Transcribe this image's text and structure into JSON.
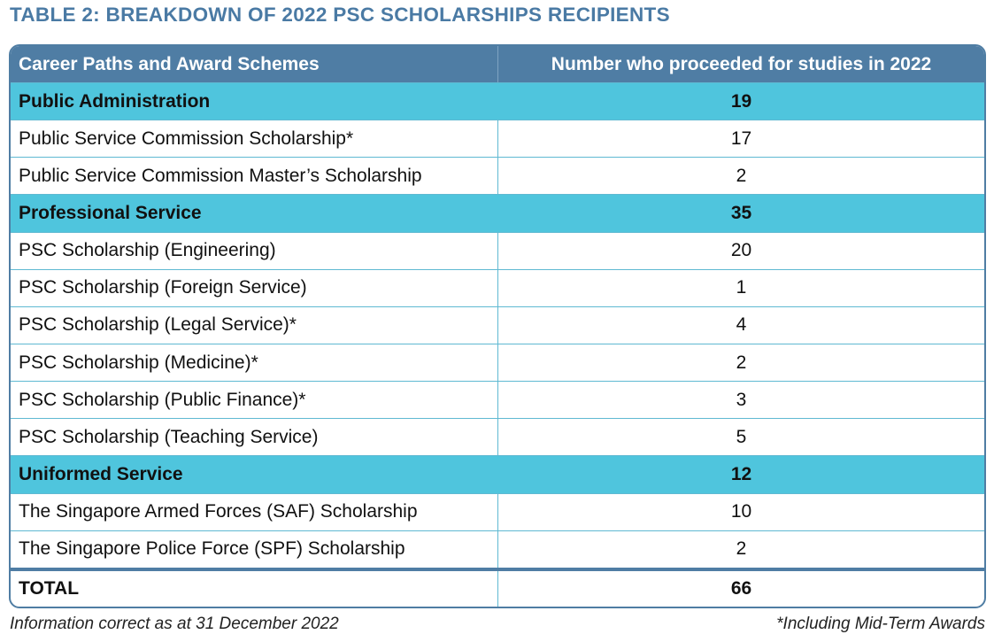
{
  "header": {
    "title": "TABLE 2: BREAKDOWN OF 2022 PSC SCHOLARSHIPS RECIPIENTS"
  },
  "table": {
    "columns": [
      "Career Paths and Award Schemes",
      "Number who proceeded for studies in 2022"
    ],
    "sections": [
      {
        "name": "Public Administration",
        "total": 19,
        "items": [
          {
            "label": "Public Service Commission Scholarship*",
            "value": 17
          },
          {
            "label": "Public Service Commission Master’s Scholarship",
            "value": 2
          }
        ]
      },
      {
        "name": "Professional Service",
        "total": 35,
        "items": [
          {
            "label": "PSC Scholarship (Engineering)",
            "value": 20
          },
          {
            "label": "PSC Scholarship (Foreign Service)",
            "value": 1
          },
          {
            "label": "PSC Scholarship (Legal Service)*",
            "value": 4
          },
          {
            "label": "PSC Scholarship (Medicine)*",
            "value": 2
          },
          {
            "label": "PSC Scholarship (Public Finance)*",
            "value": 3
          },
          {
            "label": "PSC Scholarship (Teaching Service)",
            "value": 5
          }
        ]
      },
      {
        "name": "Uniformed Service",
        "total": 12,
        "items": [
          {
            "label": "The Singapore Armed Forces (SAF) Scholarship",
            "value": 10
          },
          {
            "label": "The Singapore Police Force (SPF) Scholarship",
            "value": 2
          }
        ]
      }
    ],
    "total": {
      "label": "TOTAL",
      "value": 66
    }
  },
  "footer": {
    "note": "Information correct as at 31 December 2022",
    "footnote": "*Including Mid-Term Awards"
  }
}
